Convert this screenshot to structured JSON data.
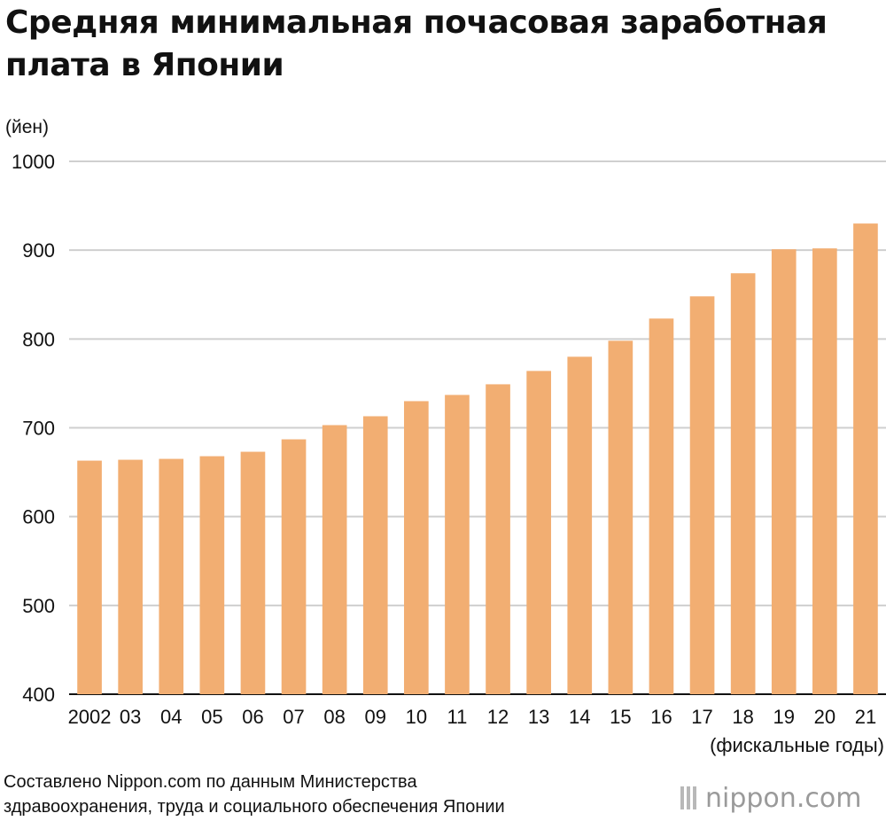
{
  "title": "Средняя минимальная почасовая заработная плата в Японии",
  "source": {
    "line1": "Составлено Nippon.com по данным Министерства",
    "line2": "здравоохранения, труда и социального обеспечения Японии"
  },
  "brand": {
    "name": "nippon",
    "suffix": ".com"
  },
  "colors": {
    "bar": "#F2AE72",
    "grid": "#CFCFCF",
    "text": "#111111"
  },
  "chart_data": {
    "type": "bar",
    "title": "Средняя минимальная почасовая заработная плата в Японии",
    "ylabel": "(йен)",
    "xlabel": "(фискальные годы)",
    "ylim": [
      400,
      1000
    ],
    "yticks": [
      400,
      500,
      600,
      700,
      800,
      900,
      1000
    ],
    "grid": true,
    "categories": [
      "2002",
      "03",
      "04",
      "05",
      "06",
      "07",
      "08",
      "09",
      "10",
      "11",
      "12",
      "13",
      "14",
      "15",
      "16",
      "17",
      "18",
      "19",
      "20",
      "21"
    ],
    "values": [
      663,
      664,
      665,
      668,
      673,
      687,
      703,
      713,
      730,
      737,
      749,
      764,
      780,
      798,
      823,
      848,
      874,
      901,
      902,
      930
    ]
  }
}
